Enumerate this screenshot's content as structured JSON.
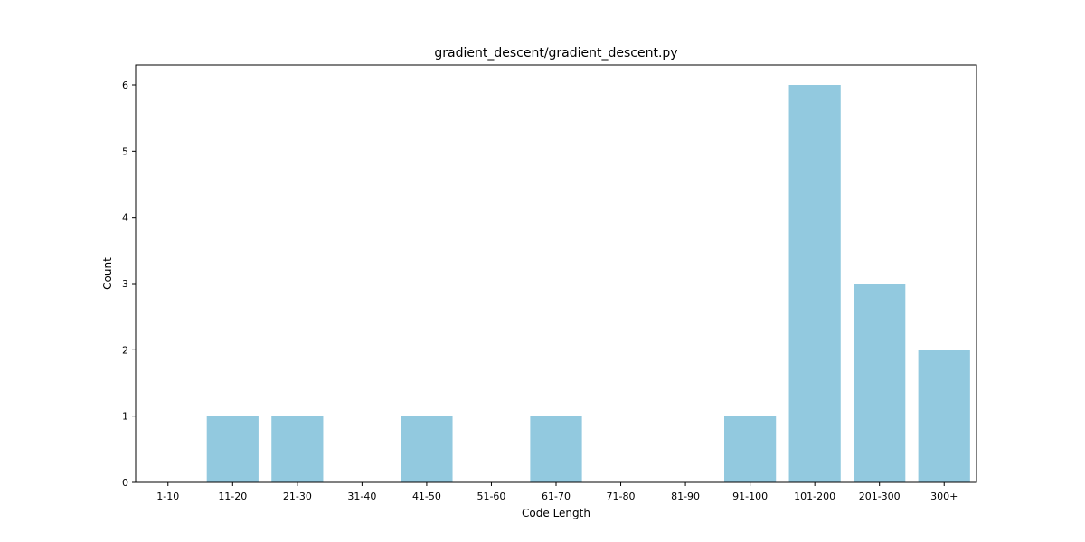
{
  "chart_data": {
    "type": "bar",
    "title": "gradient_descent/gradient_descent.py",
    "xlabel": "Code Length",
    "ylabel": "Count",
    "categories": [
      "1-10",
      "11-20",
      "21-30",
      "31-40",
      "41-50",
      "51-60",
      "61-70",
      "71-80",
      "81-90",
      "91-100",
      "101-200",
      "201-300",
      "300+"
    ],
    "values": [
      0,
      1,
      1,
      0,
      1,
      0,
      1,
      0,
      0,
      1,
      6,
      3,
      2
    ],
    "ylim": [
      0,
      6.3
    ],
    "yticks": [
      0,
      1,
      2,
      3,
      4,
      5,
      6
    ],
    "grid": false,
    "bar_color": "#92c9df"
  }
}
